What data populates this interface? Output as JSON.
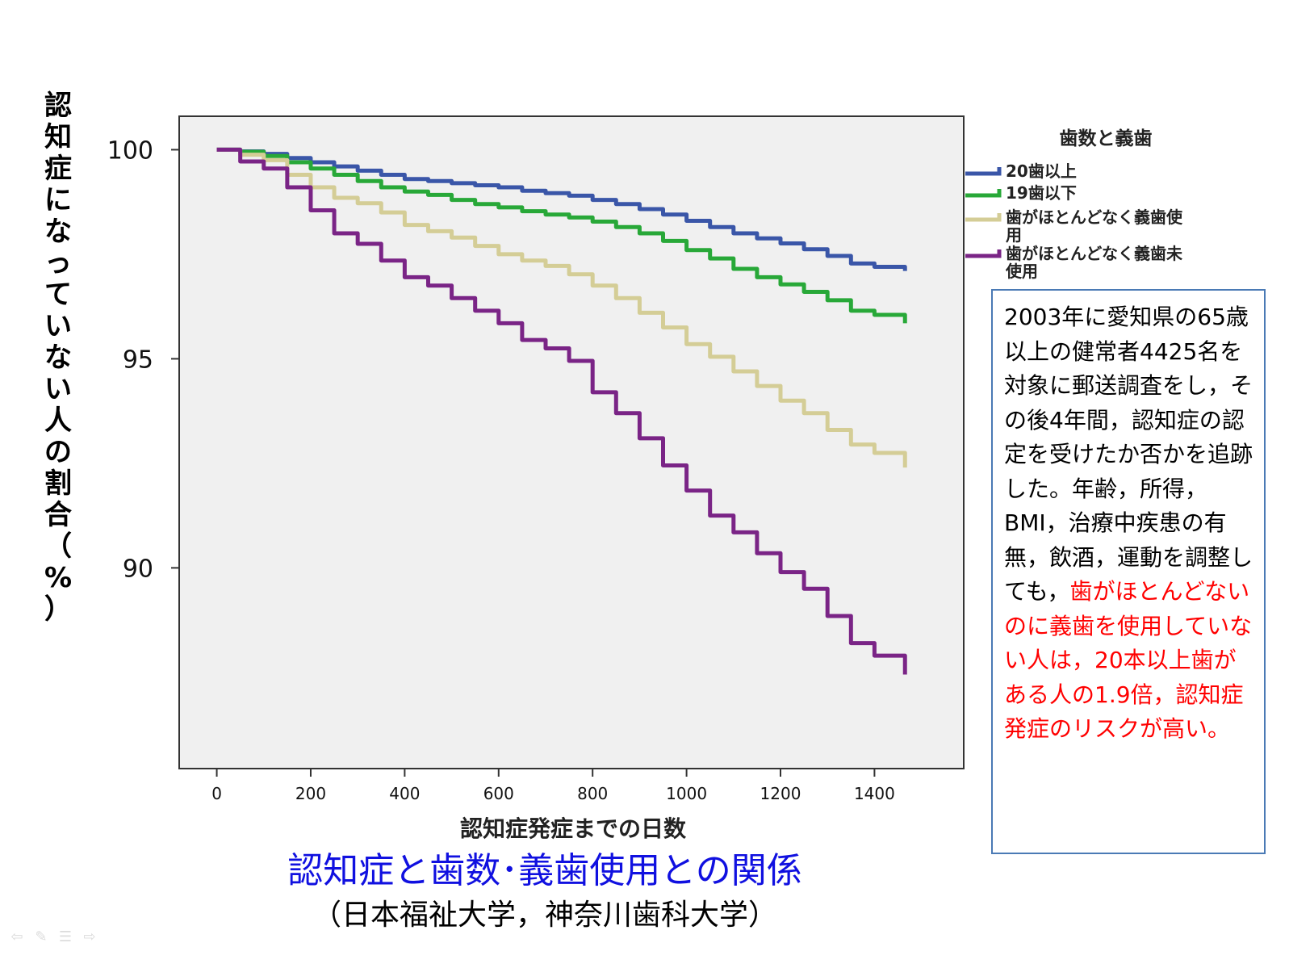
{
  "chart_data": {
    "type": "line",
    "title": "",
    "xlabel": "認知症発症までの日数",
    "ylabel": "認知症になっていない人の割合（%）",
    "xlim": [
      -80,
      1590
    ],
    "ylim": [
      85.2,
      100.8
    ],
    "xticks": [
      0,
      200,
      400,
      600,
      800,
      1000,
      1200,
      1400
    ],
    "yticks": [
      90,
      95,
      100
    ],
    "grid": false,
    "legend": {
      "title": "歯数と義歯",
      "position": "right"
    },
    "series": [
      {
        "name": "20歯以上",
        "color": "#3a56a8",
        "x": [
          0,
          50,
          100,
          150,
          200,
          250,
          300,
          350,
          400,
          450,
          500,
          550,
          600,
          650,
          700,
          750,
          800,
          850,
          900,
          950,
          1000,
          1050,
          1100,
          1150,
          1200,
          1250,
          1300,
          1350,
          1400,
          1465
        ],
        "y": [
          100,
          99.96,
          99.9,
          99.8,
          99.7,
          99.6,
          99.5,
          99.4,
          99.3,
          99.25,
          99.2,
          99.15,
          99.1,
          99.02,
          98.96,
          98.9,
          98.8,
          98.7,
          98.58,
          98.45,
          98.3,
          98.15,
          98.0,
          97.88,
          97.76,
          97.62,
          97.46,
          97.28,
          97.2,
          97.1
        ]
      },
      {
        "name": "19歯以下",
        "color": "#28a838",
        "x": [
          0,
          50,
          100,
          150,
          200,
          250,
          300,
          350,
          400,
          450,
          500,
          550,
          600,
          650,
          700,
          750,
          800,
          850,
          900,
          950,
          1000,
          1050,
          1100,
          1150,
          1200,
          1250,
          1300,
          1350,
          1400,
          1465
        ],
        "y": [
          100,
          99.95,
          99.85,
          99.7,
          99.55,
          99.4,
          99.25,
          99.1,
          99.0,
          98.92,
          98.8,
          98.7,
          98.62,
          98.53,
          98.45,
          98.38,
          98.28,
          98.15,
          98.0,
          97.82,
          97.6,
          97.4,
          97.15,
          96.95,
          96.78,
          96.6,
          96.4,
          96.15,
          96.05,
          95.85
        ]
      },
      {
        "name": "歯がほとんどなく義歯使用",
        "color": "#d4cd96",
        "x": [
          0,
          50,
          100,
          150,
          200,
          250,
          300,
          350,
          400,
          450,
          500,
          550,
          600,
          650,
          700,
          750,
          800,
          850,
          900,
          950,
          1000,
          1050,
          1100,
          1150,
          1200,
          1250,
          1300,
          1350,
          1400,
          1465
        ],
        "y": [
          100,
          99.88,
          99.75,
          99.4,
          99.1,
          98.85,
          98.72,
          98.5,
          98.2,
          98.05,
          97.9,
          97.7,
          97.5,
          97.35,
          97.22,
          97.02,
          96.75,
          96.45,
          96.1,
          95.75,
          95.35,
          95.05,
          94.7,
          94.35,
          94.0,
          93.7,
          93.3,
          92.95,
          92.75,
          92.4
        ]
      },
      {
        "name": "歯がほとんどなく義歯未使用",
        "color": "#7a2486",
        "x": [
          0,
          50,
          100,
          150,
          200,
          250,
          300,
          350,
          400,
          450,
          500,
          550,
          600,
          650,
          700,
          750,
          800,
          850,
          900,
          950,
          1000,
          1050,
          1100,
          1150,
          1200,
          1250,
          1300,
          1350,
          1400,
          1465
        ],
        "y": [
          100,
          99.72,
          99.55,
          99.1,
          98.55,
          98.0,
          97.75,
          97.35,
          96.95,
          96.75,
          96.45,
          96.15,
          95.85,
          95.45,
          95.25,
          94.95,
          94.2,
          93.7,
          93.1,
          92.45,
          91.85,
          91.25,
          90.85,
          90.35,
          89.9,
          89.5,
          88.85,
          88.2,
          87.9,
          87.45
        ]
      }
    ]
  },
  "y_axis_label_chars": [
    "認",
    "知",
    "症",
    "に",
    "な",
    "っ",
    "て",
    "い",
    "な",
    "い",
    "人",
    "の",
    "割",
    "合",
    "（",
    "%",
    "）"
  ],
  "info_box": {
    "black_text": "2003年に愛知県の65歳以上の健常者4425名を対象に郵送調査をし，その後4年間，認知症の認定を受けたか否かを追跡した。年齢，所得，BMI，治療中疾患の有無，飲酒，運動を調整しても，",
    "red_text": "歯がほとんどないのに義歯を使用していない人は，20本以上歯がある人の1.9倍，認知症発症のリスクが高い。"
  },
  "main_title": "認知症と歯数･義歯使用との関係",
  "sub_title": "（日本福祉大学，神奈川歯科大学）",
  "nav_icons": [
    "prev-arrow-icon",
    "pen-icon",
    "menu-icon",
    "next-arrow-icon"
  ]
}
